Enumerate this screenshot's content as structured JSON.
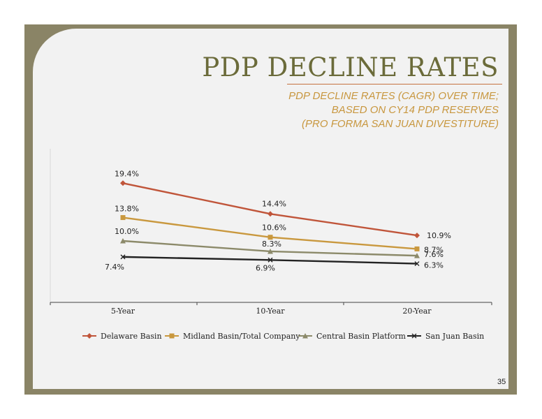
{
  "slide": {
    "title": "PDP DECLINE RATES",
    "subtitle_lines": [
      "PDP DECLINE RATES (CAGR) OVER TIME;",
      "BASED ON  CY14 PDP RESERVES",
      "(PRO FORMA SAN JUAN DIVESTITURE)"
    ],
    "page_number": "35"
  },
  "colors": {
    "frame": "#8a8466",
    "background": "#f2f2f2",
    "title": "#6b6b3a",
    "subtitle": "#c8973f",
    "rule": "#c4713f"
  },
  "chart_data": {
    "type": "line",
    "categories": [
      "5-Year",
      "10-Year",
      "20-Year"
    ],
    "ylim": [
      0,
      25
    ],
    "grid": false,
    "legend_position": "bottom",
    "series": [
      {
        "name": "Delaware Basin",
        "values": [
          19.4,
          14.4,
          10.9
        ],
        "labels": [
          "19.4%",
          "14.4%",
          "10.9%"
        ],
        "color": "#c0553a",
        "marker": "diamond"
      },
      {
        "name": "Midland Basin/Total Company",
        "values": [
          13.8,
          10.6,
          8.7
        ],
        "labels": [
          "13.8%",
          "10.6%",
          "8.7%"
        ],
        "color": "#c9983e",
        "marker": "square"
      },
      {
        "name": "Central Basin Platform",
        "values": [
          10.0,
          8.3,
          7.6
        ],
        "labels": [
          "10.0%",
          "8.3%",
          "7.6%"
        ],
        "color": "#8c8a6a",
        "marker": "triangle"
      },
      {
        "name": "San Juan Basin",
        "values": [
          7.4,
          6.9,
          6.3
        ],
        "labels": [
          "7.4%",
          "6.9%",
          "6.3%"
        ],
        "color": "#222222",
        "marker": "x"
      }
    ]
  }
}
